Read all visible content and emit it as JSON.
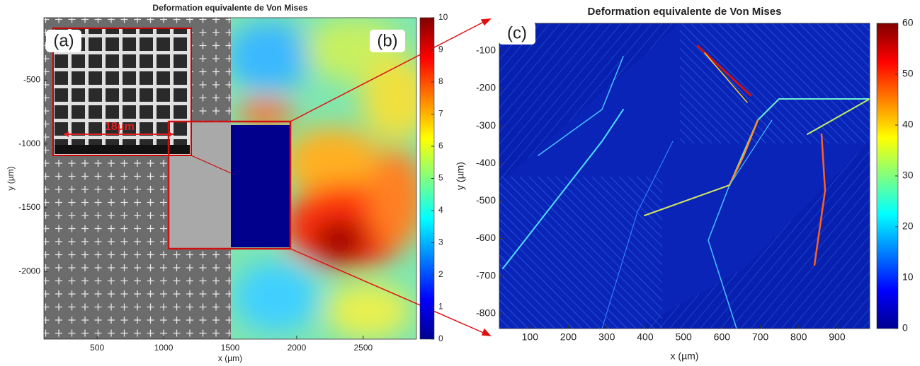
{
  "chart_data": [
    {
      "type": "heatmap",
      "title": "Deformation equivalente de Von Mises",
      "xlabel": "x (µm)",
      "ylabel": "y (µm)",
      "xlim": [
        100,
        2900
      ],
      "xticks": [
        500,
        1000,
        1500,
        2000,
        2500
      ],
      "ylim": [
        -2530,
        -10
      ],
      "yticks": [
        -500,
        -1000,
        -1500,
        -2000
      ],
      "colormap": "jet",
      "colorbar_lim": [
        0,
        10
      ],
      "colorbar_ticks": [
        0,
        1,
        2,
        3,
        4,
        5,
        6,
        7,
        8,
        9,
        10
      ],
      "panel_labels": [
        "(a)",
        "(b)"
      ],
      "annotations": [
        "18μm"
      ]
    },
    {
      "type": "heatmap",
      "title": "Deformation equivalente de Von Mises",
      "xlabel": "x (µm)",
      "ylabel": "y (µm)",
      "xlim": [
        20,
        985
      ],
      "xticks": [
        100,
        200,
        300,
        400,
        500,
        600,
        700,
        800,
        900
      ],
      "ylim": [
        -840,
        -27
      ],
      "yticks": [
        -100,
        -200,
        -300,
        -400,
        -500,
        -600,
        -700,
        -800
      ],
      "colormap": "jet",
      "colorbar_lim": [
        0,
        60
      ],
      "colorbar_ticks": [
        0,
        10,
        20,
        30,
        40,
        50,
        60
      ],
      "panel_labels": [
        "(c)"
      ]
    }
  ]
}
